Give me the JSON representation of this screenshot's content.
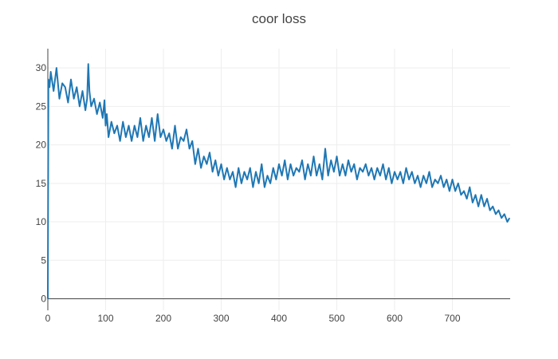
{
  "chart_data": {
    "type": "line",
    "title": "coor loss",
    "xlabel": "",
    "ylabel": "",
    "xlim": [
      0,
      800
    ],
    "ylim": [
      -1.5,
      32.5
    ],
    "x_ticks": [
      0,
      100,
      200,
      300,
      400,
      500,
      600,
      700
    ],
    "y_ticks": [
      0,
      5,
      10,
      15,
      20,
      25,
      30
    ],
    "grid": true,
    "legend": "none",
    "colors": {
      "line": "#1f77b4",
      "grid": "#eeeeee",
      "axis": "#444444",
      "text": "#444444"
    },
    "series": [
      {
        "x": [
          0,
          1,
          3,
          5,
          10,
          15,
          20,
          25,
          30,
          35,
          40,
          45,
          50,
          55,
          60,
          65,
          68,
          70,
          72,
          75,
          80,
          85,
          90,
          95,
          98,
          100,
          102,
          105,
          110,
          115,
          120,
          125,
          130,
          135,
          140,
          145,
          150,
          155,
          160,
          165,
          170,
          175,
          180,
          185,
          190,
          195,
          200,
          205,
          210,
          215,
          220,
          225,
          230,
          235,
          240,
          245,
          250,
          255,
          260,
          265,
          270,
          275,
          280,
          285,
          290,
          295,
          300,
          305,
          310,
          315,
          320,
          325,
          330,
          335,
          340,
          345,
          350,
          355,
          360,
          365,
          370,
          375,
          380,
          385,
          390,
          395,
          400,
          405,
          410,
          415,
          420,
          425,
          430,
          435,
          440,
          445,
          450,
          455,
          460,
          465,
          470,
          475,
          480,
          485,
          490,
          495,
          500,
          505,
          510,
          515,
          520,
          525,
          530,
          535,
          540,
          545,
          550,
          555,
          560,
          565,
          570,
          575,
          580,
          585,
          590,
          595,
          600,
          605,
          610,
          615,
          620,
          625,
          630,
          635,
          640,
          645,
          650,
          655,
          660,
          665,
          670,
          675,
          680,
          685,
          690,
          695,
          700,
          705,
          710,
          715,
          720,
          725,
          730,
          735,
          740,
          745,
          750,
          755,
          760,
          765,
          770,
          775,
          780,
          785,
          790,
          795,
          799
        ],
        "y": [
          0,
          28.5,
          27.5,
          29.5,
          27,
          30,
          26,
          28,
          27.5,
          25.5,
          28.5,
          26,
          27.5,
          25,
          27,
          24.5,
          26,
          30.5,
          27,
          25,
          26,
          24,
          25.5,
          23.5,
          25.8,
          22.5,
          24,
          21,
          23,
          21.5,
          22.5,
          20.5,
          23,
          21,
          22.5,
          20.5,
          22.5,
          21,
          23.5,
          20.5,
          22.5,
          21,
          23.5,
          20.5,
          24,
          21,
          22,
          20.5,
          21.5,
          19.5,
          22.5,
          19.5,
          21,
          20.5,
          22,
          19.5,
          20.5,
          17.5,
          19.5,
          17,
          18.5,
          17.5,
          19,
          16.5,
          18,
          16,
          17.5,
          15.5,
          17,
          15.5,
          16.5,
          14.5,
          17,
          15,
          16.5,
          15.5,
          17,
          14.5,
          16.5,
          15,
          17.5,
          14.5,
          16,
          15,
          17,
          15.5,
          17.5,
          16,
          18,
          15.5,
          17.5,
          16,
          17,
          16.5,
          18,
          15.5,
          17.5,
          16,
          18.5,
          16,
          17.5,
          15.5,
          19.5,
          16,
          18,
          16.5,
          18.5,
          16,
          17.5,
          16,
          18,
          16.5,
          17.5,
          15.5,
          17,
          16.5,
          17.5,
          16,
          17,
          15.5,
          17,
          16,
          17.5,
          15.5,
          17,
          15,
          16.5,
          15.5,
          16.5,
          15,
          17,
          15.5,
          16.5,
          15,
          16,
          14.5,
          16,
          15,
          16.5,
          14.5,
          15.5,
          15,
          16,
          14.5,
          15.5,
          14,
          15.5,
          14,
          15,
          13.5,
          14,
          13,
          14.5,
          12.5,
          13.5,
          12,
          13.5,
          12,
          13,
          11.5,
          12,
          11,
          11.5,
          10.5,
          11,
          10,
          10.5
        ]
      }
    ]
  }
}
